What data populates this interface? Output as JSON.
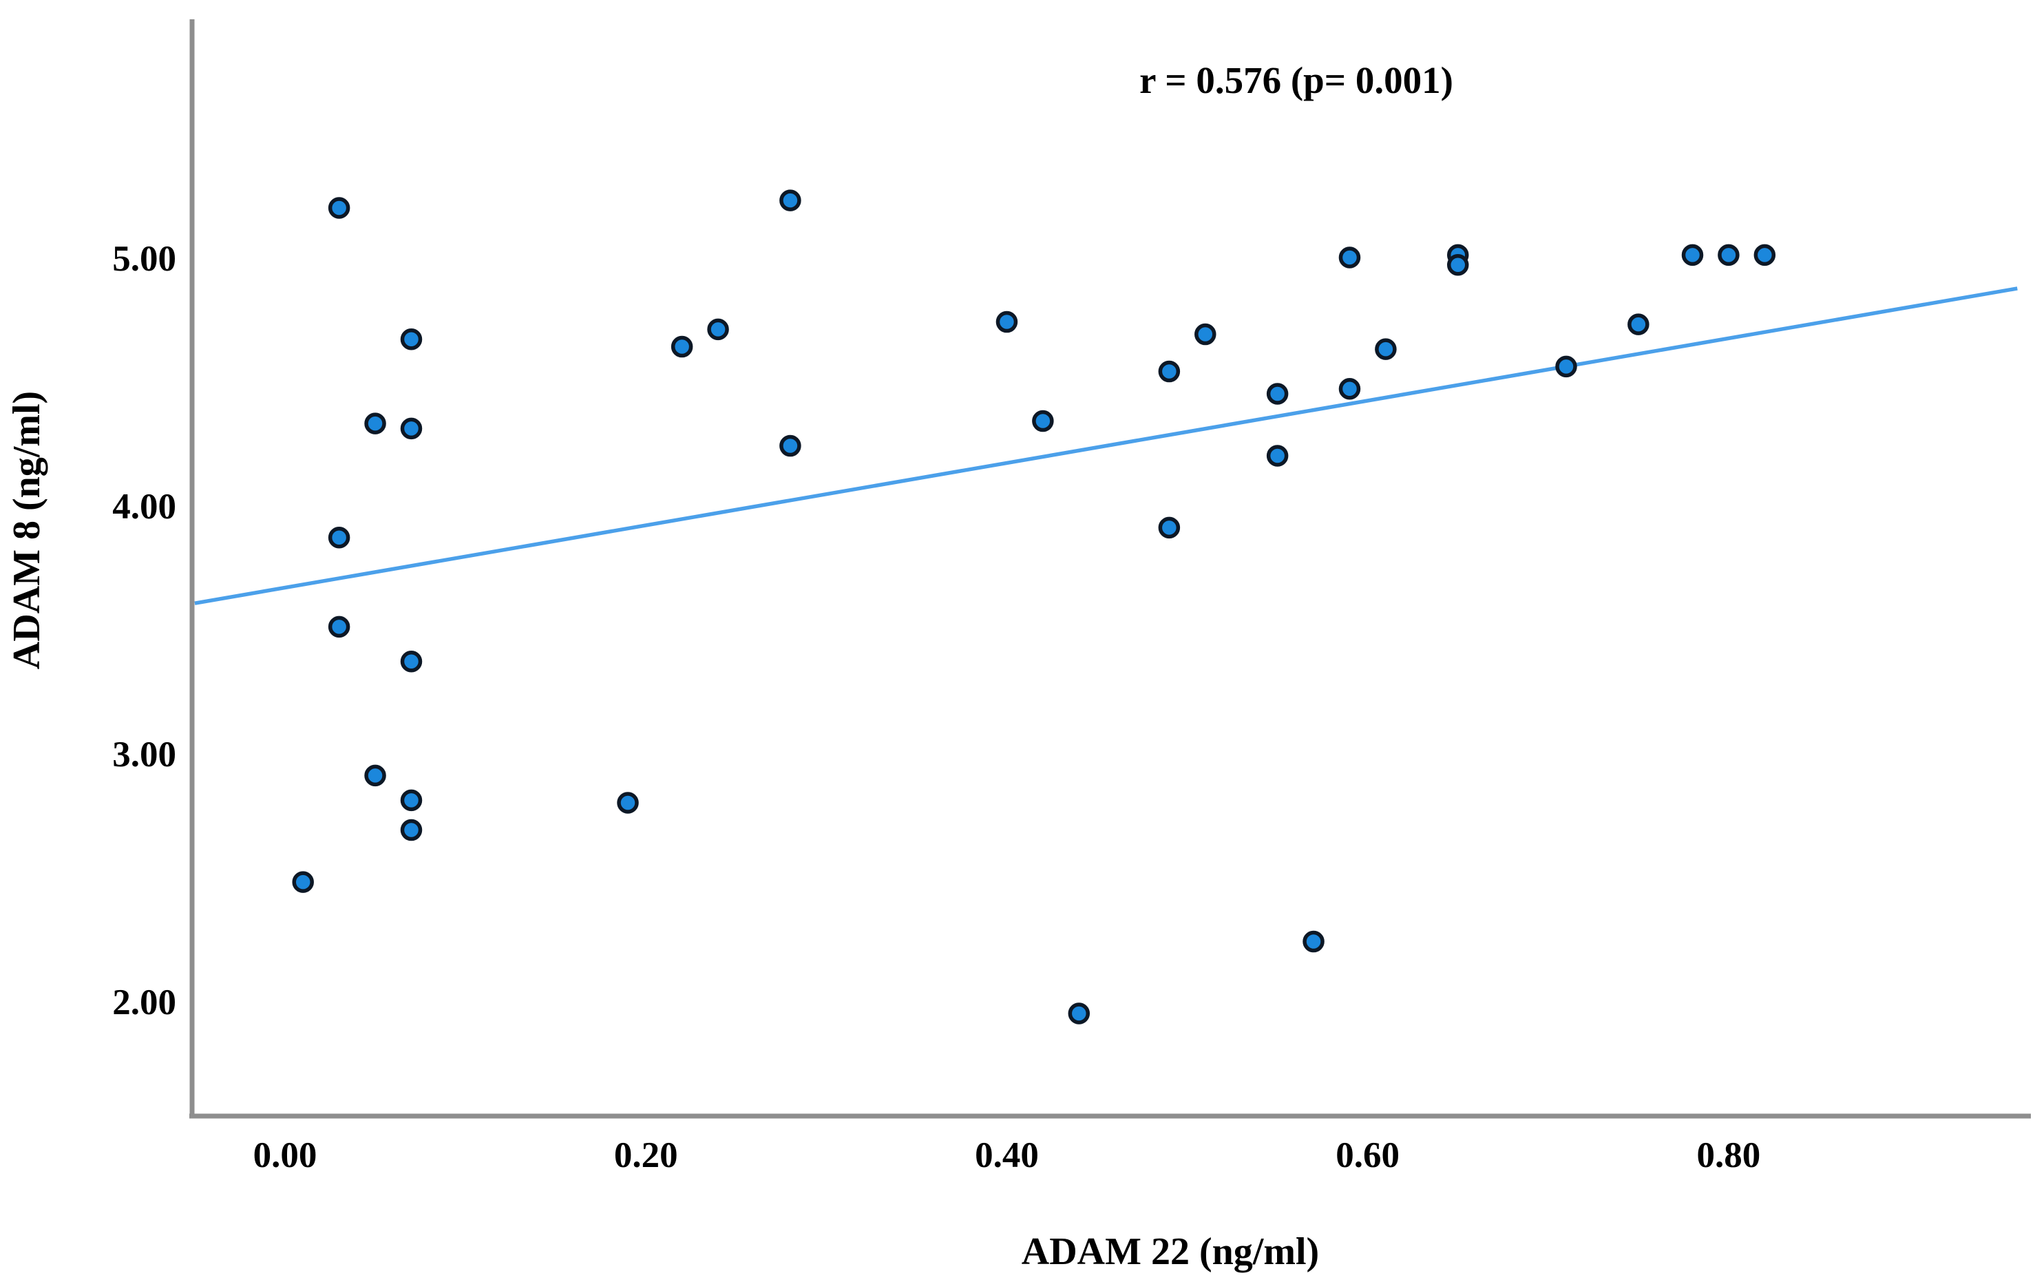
{
  "figure": {
    "background": "#ffffff",
    "annotation": "r = 0.576 (p= 0.001)"
  },
  "chart_data": {
    "type": "scatter",
    "title": "",
    "xlabel": "ADAM 22 (ng/ml)",
    "ylabel": "ADAM 8 (ng/ml)",
    "annotation": "r = 0.576 (p= 0.001)",
    "r_value": "0.576",
    "p_value": "0.001",
    "x_ticks": [
      "0.00",
      "0.20",
      "0.40",
      "0.60",
      "0.80"
    ],
    "x_tick_values": [
      0.0,
      0.2,
      0.4,
      0.6,
      0.8
    ],
    "y_ticks": [
      "5.00",
      "4.00",
      "3.00",
      "2.00"
    ],
    "y_tick_values": [
      5.0,
      4.0,
      3.0,
      2.0
    ],
    "xlim": [
      -0.0515,
      0.9637
    ],
    "ylim": [
      1.536,
      5.961
    ],
    "grid": false,
    "legend_position": "none",
    "points": [
      [
        0.03,
        5.2
      ],
      [
        0.28,
        5.23
      ],
      [
        0.59,
        5.0
      ],
      [
        0.65,
        5.01
      ],
      [
        0.65,
        4.97
      ],
      [
        0.78,
        5.01
      ],
      [
        0.8,
        5.01
      ],
      [
        0.82,
        5.01
      ],
      [
        0.07,
        4.67
      ],
      [
        0.22,
        4.64
      ],
      [
        0.24,
        4.71
      ],
      [
        0.4,
        4.74
      ],
      [
        0.75,
        4.73
      ],
      [
        0.51,
        4.69
      ],
      [
        0.61,
        4.63
      ],
      [
        0.49,
        4.54
      ],
      [
        0.55,
        4.45
      ],
      [
        0.59,
        4.47
      ],
      [
        0.71,
        4.56
      ],
      [
        0.05,
        4.33
      ],
      [
        0.07,
        4.31
      ],
      [
        0.42,
        4.34
      ],
      [
        0.28,
        4.24
      ],
      [
        0.55,
        4.2
      ],
      [
        0.49,
        3.91
      ],
      [
        0.03,
        3.87
      ],
      [
        0.03,
        3.51
      ],
      [
        0.07,
        3.37
      ],
      [
        0.05,
        2.91
      ],
      [
        0.07,
        2.81
      ],
      [
        0.19,
        2.8
      ],
      [
        0.07,
        2.69
      ],
      [
        0.01,
        2.48
      ],
      [
        0.57,
        2.24
      ],
      [
        0.44,
        1.95
      ]
    ],
    "regression_line": {
      "x1": -0.05,
      "y1": 3.605,
      "x2": 0.96,
      "y2": 4.875
    },
    "colors": {
      "point_fill": "#1b87dc",
      "point_stroke": "#0d1826",
      "line": "#4ba0ea",
      "axis": "#8e8e8e",
      "text": "#000000"
    }
  }
}
